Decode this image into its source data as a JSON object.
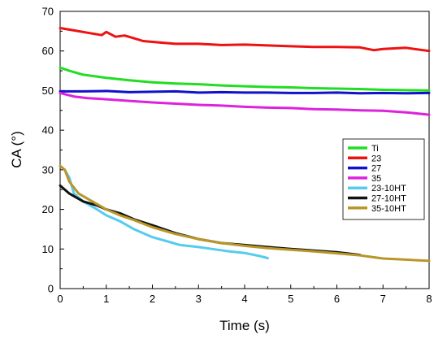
{
  "chart_data": {
    "type": "line",
    "title": "",
    "xlabel": "Time (s)",
    "ylabel": "CA (°)",
    "xlim": [
      0,
      8
    ],
    "ylim": [
      0,
      70
    ],
    "xticks": [
      "0",
      "1",
      "2",
      "3",
      "4",
      "5",
      "6",
      "7",
      "8"
    ],
    "yticks": [
      "0",
      "10",
      "20",
      "30",
      "40",
      "50",
      "60",
      "70"
    ],
    "grid": false,
    "legend_position": "right-middle",
    "series": [
      {
        "name": "Ti",
        "color": "#22dd22",
        "points": [
          [
            0,
            55.8
          ],
          [
            0.2,
            55
          ],
          [
            0.5,
            54
          ],
          [
            1,
            53.2
          ],
          [
            1.5,
            52.6
          ],
          [
            2,
            52.1
          ],
          [
            2.5,
            51.8
          ],
          [
            3,
            51.6
          ],
          [
            3.5,
            51.3
          ],
          [
            4,
            51.1
          ],
          [
            4.5,
            50.9
          ],
          [
            5,
            50.8
          ],
          [
            5.5,
            50.6
          ],
          [
            6,
            50.5
          ],
          [
            6.5,
            50.4
          ],
          [
            7,
            50.2
          ],
          [
            7.5,
            50.1
          ],
          [
            8,
            50
          ]
        ]
      },
      {
        "name": "23",
        "color": "#ee1111",
        "points": [
          [
            0,
            65.8
          ],
          [
            0.3,
            65.2
          ],
          [
            0.6,
            64.6
          ],
          [
            0.9,
            64
          ],
          [
            1,
            64.8
          ],
          [
            1.2,
            63.6
          ],
          [
            1.4,
            63.9
          ],
          [
            1.6,
            63.2
          ],
          [
            1.8,
            62.5
          ],
          [
            2,
            62.3
          ],
          [
            2.2,
            62.1
          ],
          [
            2.5,
            61.8
          ],
          [
            3,
            61.8
          ],
          [
            3.5,
            61.5
          ],
          [
            4,
            61.6
          ],
          [
            4.5,
            61.4
          ],
          [
            5,
            61.2
          ],
          [
            5.5,
            61
          ],
          [
            6,
            61
          ],
          [
            6.5,
            60.9
          ],
          [
            6.8,
            60.2
          ],
          [
            7,
            60.5
          ],
          [
            7.5,
            60.8
          ],
          [
            8,
            60
          ]
        ]
      },
      {
        "name": "27",
        "color": "#1111cc",
        "points": [
          [
            0,
            49.8
          ],
          [
            0.5,
            49.8
          ],
          [
            1,
            49.9
          ],
          [
            1.5,
            49.6
          ],
          [
            2,
            49.7
          ],
          [
            2.5,
            49.8
          ],
          [
            3,
            49.5
          ],
          [
            3.5,
            49.6
          ],
          [
            4,
            49.5
          ],
          [
            4.5,
            49.5
          ],
          [
            5,
            49.4
          ],
          [
            5.5,
            49.4
          ],
          [
            6,
            49.5
          ],
          [
            6.5,
            49.3
          ],
          [
            7,
            49.4
          ],
          [
            7.5,
            49.3
          ],
          [
            8,
            49.4
          ]
        ]
      },
      {
        "name": "35",
        "color": "#dd22dd",
        "points": [
          [
            0,
            49.4
          ],
          [
            0.3,
            48.5
          ],
          [
            0.6,
            48.1
          ],
          [
            1,
            47.8
          ],
          [
            1.5,
            47.4
          ],
          [
            2,
            47
          ],
          [
            2.5,
            46.7
          ],
          [
            3,
            46.4
          ],
          [
            3.5,
            46.2
          ],
          [
            4,
            45.9
          ],
          [
            4.5,
            45.7
          ],
          [
            5,
            45.6
          ],
          [
            5.5,
            45.3
          ],
          [
            6,
            45.2
          ],
          [
            6.5,
            45
          ],
          [
            7,
            44.9
          ],
          [
            7.5,
            44.5
          ],
          [
            8,
            43.9
          ]
        ]
      },
      {
        "name": "23-10HT",
        "color": "#55ccee",
        "points": [
          [
            0.1,
            30
          ],
          [
            0.2,
            28
          ],
          [
            0.3,
            24
          ],
          [
            0.5,
            22
          ],
          [
            0.8,
            20
          ],
          [
            1,
            18.5
          ],
          [
            1.3,
            17
          ],
          [
            1.6,
            15
          ],
          [
            2,
            13
          ],
          [
            2.3,
            12
          ],
          [
            2.6,
            11
          ],
          [
            3,
            10.5
          ],
          [
            3.3,
            10
          ],
          [
            3.6,
            9.5
          ],
          [
            4,
            9
          ],
          [
            4.3,
            8.3
          ],
          [
            4.5,
            7.7
          ]
        ]
      },
      {
        "name": "27-10HT",
        "color": "#111111",
        "points": [
          [
            0,
            26
          ],
          [
            0.2,
            24
          ],
          [
            0.5,
            22
          ],
          [
            0.8,
            21
          ],
          [
            1,
            20
          ],
          [
            1.3,
            19
          ],
          [
            1.6,
            17.5
          ],
          [
            2,
            16
          ],
          [
            2.5,
            14
          ],
          [
            3,
            12.5
          ],
          [
            3.5,
            11.5
          ],
          [
            4,
            11
          ],
          [
            4.5,
            10.5
          ],
          [
            5,
            10
          ],
          [
            5.5,
            9.6
          ],
          [
            6,
            9.2
          ],
          [
            6.5,
            8.5
          ]
        ]
      },
      {
        "name": "35-10HT",
        "color": "#b8962a",
        "points": [
          [
            0,
            31
          ],
          [
            0.1,
            30
          ],
          [
            0.2,
            27
          ],
          [
            0.4,
            24
          ],
          [
            0.7,
            22
          ],
          [
            1,
            20
          ],
          [
            1.3,
            18.5
          ],
          [
            1.6,
            17.3
          ],
          [
            2,
            15.5
          ],
          [
            2.5,
            13.8
          ],
          [
            3,
            12.5
          ],
          [
            3.5,
            11.5
          ],
          [
            4,
            10.8
          ],
          [
            4.5,
            10.2
          ],
          [
            5,
            9.8
          ],
          [
            5.5,
            9.4
          ],
          [
            6,
            8.9
          ],
          [
            6.5,
            8.4
          ],
          [
            7,
            7.6
          ],
          [
            7.5,
            7.3
          ],
          [
            8,
            7
          ]
        ]
      }
    ]
  }
}
